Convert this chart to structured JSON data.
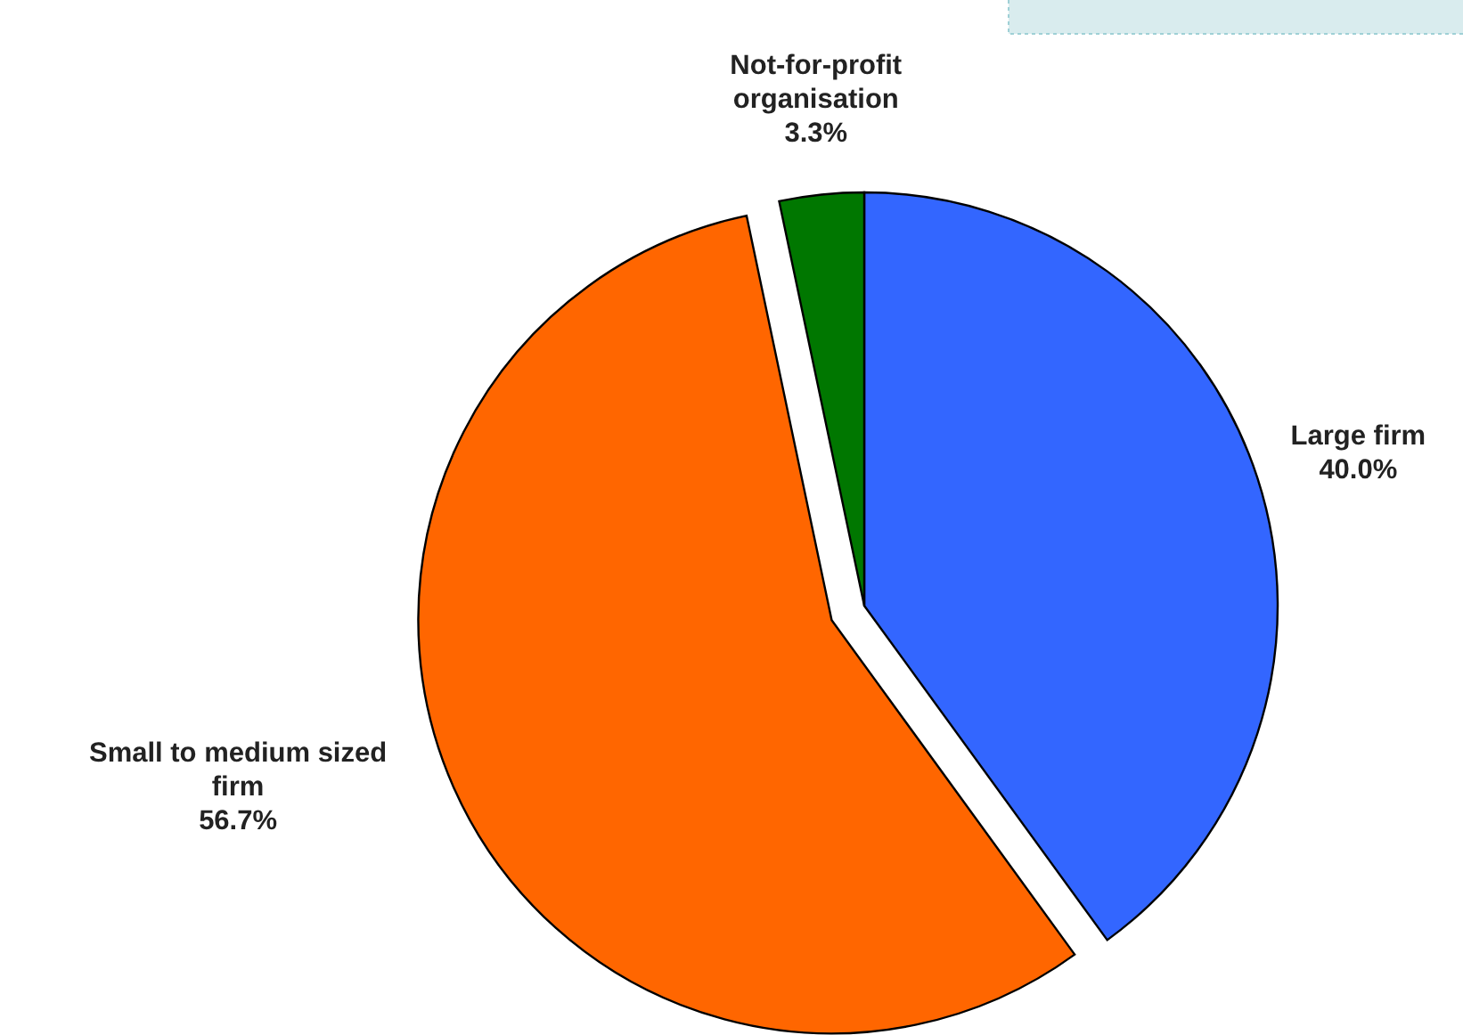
{
  "chart_data": {
    "type": "pie",
    "categories": [
      "Large firm",
      "Small to medium sized firm",
      "Not-for-profit organisation"
    ],
    "values": [
      40.0,
      56.7,
      3.3
    ],
    "colors": [
      "#3366ff",
      "#ff6600",
      "#007700"
    ],
    "value_labels": [
      "40.0%",
      "56.7%",
      "3.3%"
    ]
  }
}
